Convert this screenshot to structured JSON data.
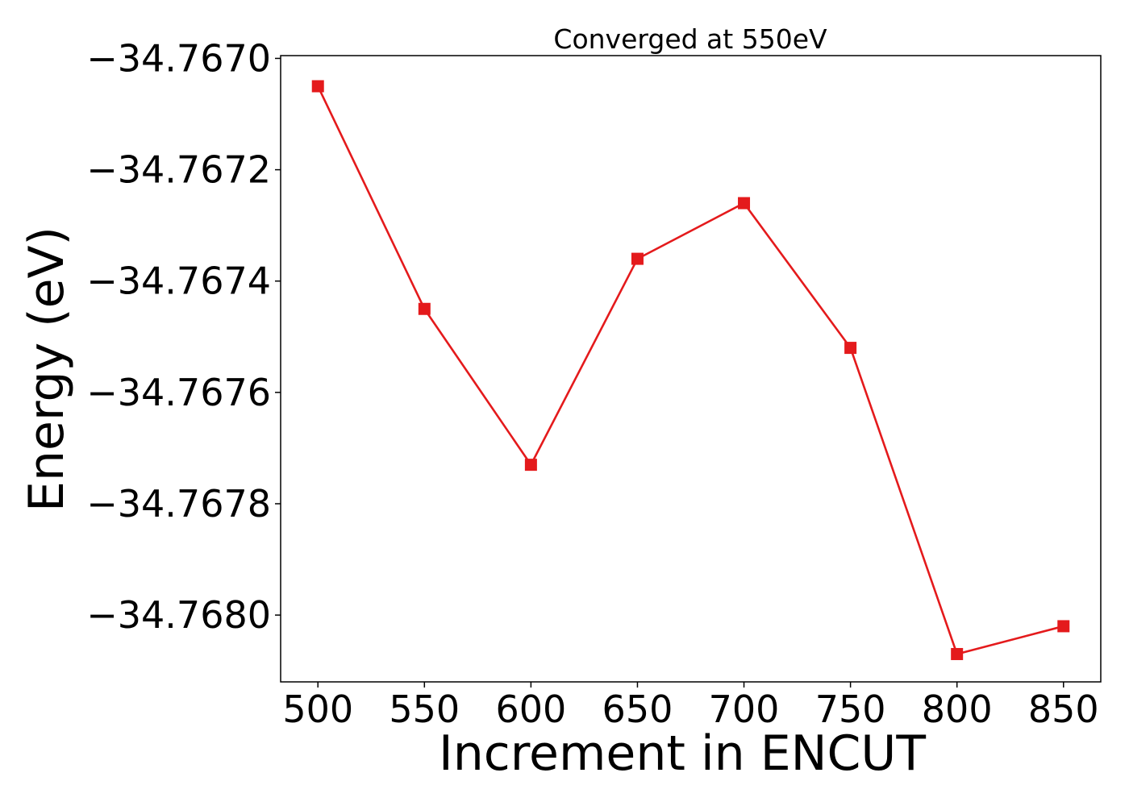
{
  "chart_data": {
    "type": "line",
    "title": "Converged at 550eV",
    "xlabel": "Increment in ENCUT",
    "ylabel": "Energy (eV)",
    "x": [
      500,
      550,
      600,
      650,
      700,
      750,
      800,
      850
    ],
    "series": [
      {
        "values": [
          -34.76705,
          -34.76745,
          -34.76773,
          -34.76736,
          -34.76726,
          -34.76752,
          -34.76807,
          -34.76802
        ],
        "color": "#e41a1c",
        "marker": "square"
      }
    ],
    "xticks": [
      500,
      550,
      600,
      650,
      700,
      750,
      800,
      850
    ],
    "xtick_labels": [
      "500",
      "550",
      "600",
      "650",
      "700",
      "750",
      "800",
      "850"
    ],
    "yticks": [
      -34.767,
      -34.7672,
      -34.7674,
      -34.7676,
      -34.7678,
      -34.768
    ],
    "ytick_labels": [
      "−34.7670",
      "−34.7672",
      "−34.7674",
      "−34.7676",
      "−34.7678",
      "−34.7680"
    ],
    "xlim": [
      482.5,
      867.5
    ],
    "ylim": [
      -34.76812,
      -34.766995
    ],
    "grid": false,
    "legend": "none"
  }
}
